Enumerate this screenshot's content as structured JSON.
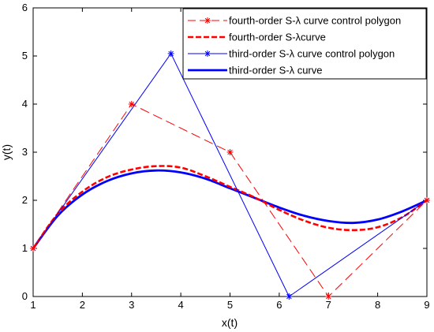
{
  "chart_data": {
    "type": "line",
    "title": "",
    "xlabel": "x(t)",
    "ylabel": "y(t)",
    "xlim": [
      1,
      9
    ],
    "ylim": [
      0,
      6
    ],
    "xticks": [
      1,
      2,
      3,
      4,
      5,
      6,
      7,
      8,
      9
    ],
    "yticks": [
      0,
      1,
      2,
      3,
      4,
      5,
      6
    ],
    "grid": false,
    "legend_position": "top-right",
    "series": [
      {
        "name": "fourth-order S-λ curve control polygon",
        "color": "#ff0000",
        "style": "dashed-thin",
        "marker": "asterisk",
        "x": [
          1,
          3,
          5,
          7,
          9
        ],
        "y": [
          1,
          4,
          3,
          0,
          2
        ]
      },
      {
        "name": "fourth-order S-λcurve",
        "color": "#ff0000",
        "style": "dashed-thick",
        "marker": "none",
        "x": [
          1,
          1.5,
          2,
          2.5,
          3,
          3.5,
          4,
          4.5,
          5,
          5.5,
          6,
          6.5,
          7,
          7.5,
          8,
          8.5,
          9
        ],
        "y": [
          1,
          1.72,
          2.18,
          2.48,
          2.64,
          2.71,
          2.68,
          2.5,
          2.28,
          2.06,
          1.8,
          1.58,
          1.43,
          1.38,
          1.44,
          1.65,
          2
        ]
      },
      {
        "name": "third-order S-λ curve control polygon",
        "color": "#0000ff",
        "style": "solid-thin",
        "marker": "asterisk",
        "x": [
          1,
          3.8,
          6.2,
          9
        ],
        "y": [
          1,
          5.05,
          0,
          2
        ]
      },
      {
        "name": "third-order S-λ curve",
        "color": "#0000ff",
        "style": "solid-thick",
        "marker": "none",
        "x": [
          1,
          1.5,
          2,
          2.5,
          3,
          3.5,
          4,
          4.5,
          5,
          5.5,
          6,
          6.5,
          7,
          7.5,
          8,
          8.5,
          9
        ],
        "y": [
          1,
          1.68,
          2.12,
          2.4,
          2.56,
          2.62,
          2.58,
          2.45,
          2.25,
          2.05,
          1.85,
          1.68,
          1.57,
          1.53,
          1.6,
          1.77,
          2
        ]
      }
    ]
  }
}
